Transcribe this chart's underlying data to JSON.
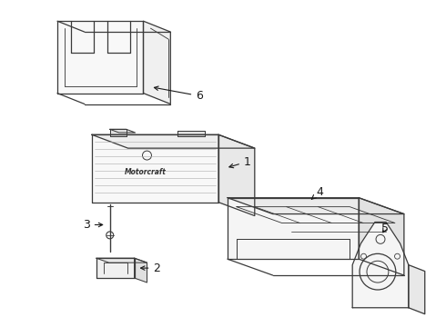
{
  "bg_color": "#ffffff",
  "line_color": "#3a3a3a",
  "label_color": "#1a1a1a",
  "fig_width": 4.9,
  "fig_height": 3.6,
  "dpi": 100
}
